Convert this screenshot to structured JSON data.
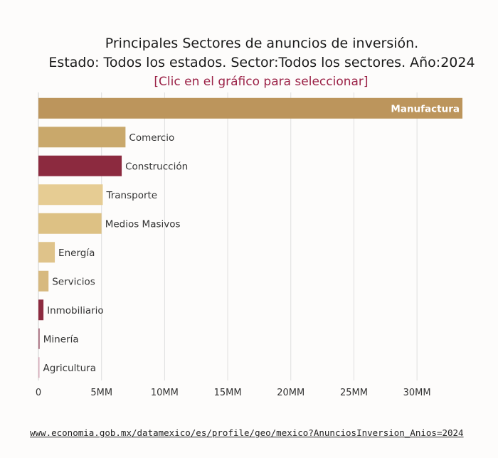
{
  "title_line1": "Principales Sectores de anuncios de inversión.",
  "title_line2": "Estado: Todos los estados. Sector:Todos los sectores. Año:2024",
  "subtitle": "[Clic en el gráfico para seleccionar]",
  "source_link": "www.economia.gob.mx/datamexico/es/profile/geo/mexico?AnunciosInversion_Anios=2024",
  "chart_data": {
    "type": "bar",
    "orientation": "horizontal",
    "categories": [
      "Manufactura",
      "Comercio",
      "Construcción",
      "Transporte",
      "Medios Masivos",
      "Energía",
      "Servicios",
      "Inmobiliario",
      "Minería",
      "Agricultura"
    ],
    "values": [
      33600000000,
      6900000000,
      6600000000,
      5100000000,
      5000000000,
      1300000000,
      800000000,
      400000000,
      100000000,
      80000000
    ],
    "colors": [
      "#bc955c",
      "#c9a86b",
      "#8c2a3f",
      "#e6cc93",
      "#ddc184",
      "#dfc38a",
      "#d7b97f",
      "#8c2a3f",
      "#a66a7c",
      "#d8a9b8"
    ],
    "xlim": [
      0,
      33600000000
    ],
    "xticks": [
      0,
      5000000000,
      10000000000,
      15000000000,
      20000000000,
      25000000000,
      30000000000
    ],
    "xtick_labels": [
      "0",
      "5MM",
      "10MM",
      "15MM",
      "20MM",
      "25MM",
      "30MM"
    ],
    "label_inside_color": "#ffffff",
    "grid": true
  }
}
